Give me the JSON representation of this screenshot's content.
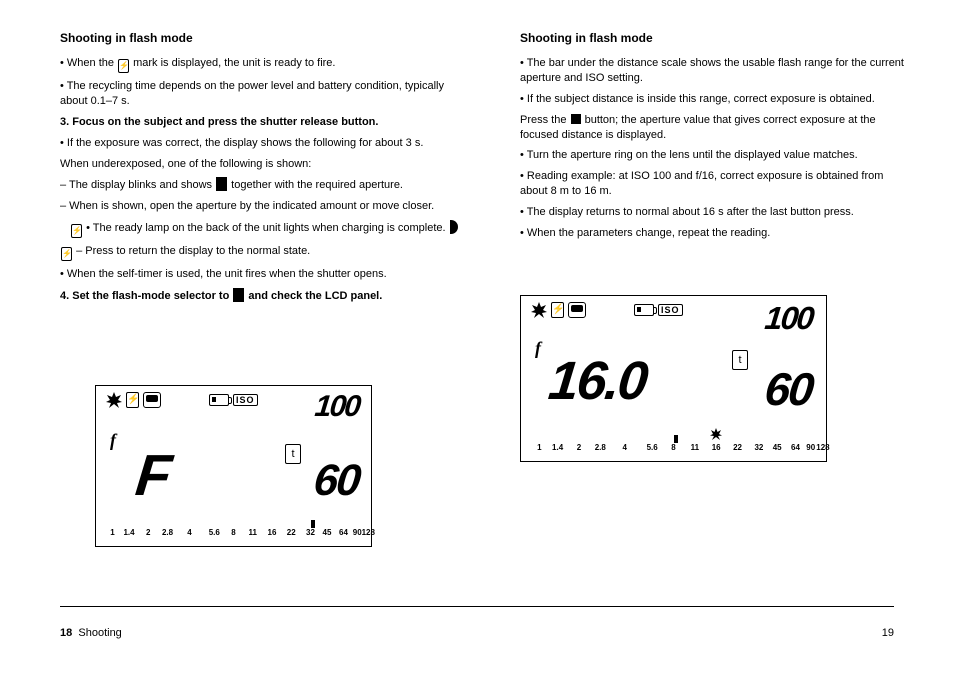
{
  "pageNumLeft": "18",
  "pageTitleLeft": "Shooting",
  "pageNumRight": "19",
  "leftCol": {
    "heading": "Shooting in flash mode",
    "p1a": "• When the ",
    "p1b": " mark is displayed, the unit is ready to fire.",
    "p2": "• The recycling time depends on the power level and battery condition, typically about 0.1–7 s.",
    "step3": "3. Focus on the subject and press the shutter release button.",
    "note1": "• If the exposure was correct, the display shows the following for about 3 s.",
    "undera": "When underexposed, one of the following is shown:",
    "bullet_a1": "– The display blinks and shows  ",
    "bullet_a1b": "  together with the required aperture.",
    "bullet_a2": "– When   is shown, open the aperture by the indicated amount or move closer.",
    "bullet_a3": "– Press   to return the display to the normal state.",
    "tip": "• The ready lamp   on the back of the unit lights when charging is complete.",
    "note2": "• When the self-timer is used, the unit fires when the shutter opens.",
    "step4": "4. Set the flash-mode selector to  ",
    "step4b": "  and check the LCD panel."
  },
  "rightCol": {
    "heading": "Shooting in flash mode",
    "p1": "• The bar under the distance scale shows the usable flash range for the current aperture and ISO setting.",
    "p2": "• If the subject distance is inside this range, correct exposure is obtained.",
    "p3a": "Press the  ",
    "p3b": "  button; the aperture value that gives correct exposure at the focused distance is displayed.",
    "p4": "• Turn the aperture ring on the lens until the displayed value matches.",
    "p5": "• Reading example: at ISO 100 and f/16, correct exposure is obtained from about 8 m to 16 m.",
    "p6": "• The display returns to normal about 16 s after the last button press.",
    "p7": "• When the parameters change, repeat the reading."
  },
  "lcd1": {
    "iso": "ISO",
    "isoVal": "100",
    "fMain": "F",
    "tBox": "t",
    "tVal": "60",
    "scale": [
      "1",
      "1.4",
      "2",
      "2.8",
      "4",
      "5.6",
      "8",
      "11",
      "16",
      "22",
      "32",
      "45",
      "64",
      "90",
      "128"
    ],
    "scalePositions": [
      6,
      12,
      19,
      26,
      34,
      43,
      50,
      57,
      64,
      71,
      78,
      84,
      90,
      95,
      99
    ],
    "marker": 78
  },
  "lcd2": {
    "iso": "ISO",
    "isoVal": "100",
    "fVal": "16.0",
    "tBox": "t",
    "tVal": "60",
    "scale": [
      "1",
      "1.4",
      "2",
      "2.8",
      "4",
      "5.6",
      "8",
      "11",
      "16",
      "22",
      "32",
      "45",
      "64",
      "90",
      "128"
    ],
    "scalePositions": [
      6,
      12,
      19,
      26,
      34,
      43,
      50,
      57,
      64,
      71,
      78,
      84,
      90,
      95,
      99
    ],
    "marker1": 50,
    "burstX": 64
  }
}
